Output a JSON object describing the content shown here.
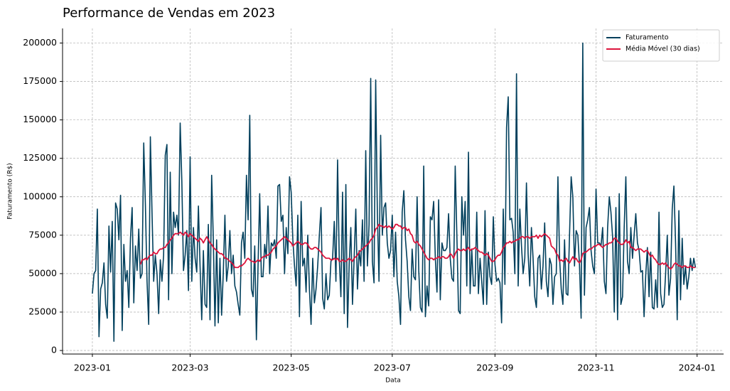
{
  "chart_data": {
    "type": "line",
    "title": "Performance de Vendas em 2023",
    "x_label": "Data",
    "y_label": "Faturamento (R$)",
    "xlim": [
      -18,
      381
    ],
    "xticks": [
      {
        "value": 0,
        "label": "2023-01"
      },
      {
        "value": 59,
        "label": "2023-03"
      },
      {
        "value": 120,
        "label": "2023-05"
      },
      {
        "value": 181,
        "label": "2023-07"
      },
      {
        "value": 243,
        "label": "2023-09"
      },
      {
        "value": 304,
        "label": "2023-11"
      },
      {
        "value": 365,
        "label": "2024-01"
      }
    ],
    "ylim": [
      -2300,
      209500
    ],
    "yticks": [
      0,
      25000,
      50000,
      75000,
      100000,
      125000,
      150000,
      175000,
      200000
    ],
    "grid": true,
    "legend": "upper right",
    "series": [
      {
        "name": "Faturamento",
        "color": "#003f5c",
        "values": [
          37000,
          50000,
          52000,
          92000,
          9000,
          40000,
          44000,
          57000,
          30000,
          21000,
          81000,
          51000,
          84000,
          6000,
          96000,
          92000,
          72000,
          101000,
          13000,
          69000,
          45000,
          52000,
          28000,
          73000,
          93000,
          31000,
          68000,
          52000,
          79000,
          47000,
          50000,
          135000,
          95000,
          45000,
          17000,
          139000,
          90000,
          45000,
          62000,
          50000,
          24000,
          59000,
          45000,
          62000,
          127000,
          134000,
          33000,
          116000,
          50000,
          90000,
          80000,
          88000,
          75000,
          148000,
          110000,
          52000,
          62000,
          78000,
          39000,
          126000,
          45000,
          80000,
          60000,
          51000,
          94000,
          55000,
          20000,
          65000,
          30000,
          28000,
          82000,
          20000,
          114000,
          72000,
          16000,
          72000,
          18000,
          60000,
          23000,
          50000,
          88000,
          45000,
          55000,
          78000,
          50000,
          62000,
          42000,
          38000,
          30000,
          23000,
          70000,
          77000,
          60000,
          114000,
          85000,
          153000,
          40000,
          35000,
          68000,
          7000,
          55000,
          102000,
          48000,
          48000,
          69000,
          60000,
          94000,
          50000,
          70000,
          68000,
          72000,
          60000,
          107000,
          108000,
          84000,
          88000,
          50000,
          80000,
          63000,
          113000,
          103000,
          72000,
          55000,
          42000,
          88000,
          22000,
          97000,
          55000,
          60000,
          38000,
          75000,
          40000,
          17000,
          60000,
          31000,
          40000,
          55000,
          75000,
          93000,
          34000,
          27000,
          50000,
          33000,
          36000,
          58000,
          60000,
          84000,
          45000,
          124000,
          60000,
          35000,
          103000,
          24000,
          108000,
          15000,
          56000,
          80000,
          30000,
          60000,
          92000,
          40000,
          65000,
          55000,
          85000,
          45000,
          130000,
          55000,
          82000,
          177000,
          58000,
          44000,
          176000,
          90000,
          45000,
          140000,
          75000,
          93000,
          96000,
          70000,
          60000,
          65000,
          88000,
          48000,
          77000,
          45000,
          35000,
          17000,
          90000,
          104000,
          72000,
          58000,
          35000,
          26000,
          66000,
          48000,
          46000,
          100000,
          52000,
          28000,
          25000,
          120000,
          22000,
          42000,
          29000,
          87000,
          85000,
          97000,
          60000,
          38000,
          98000,
          33000,
          70000,
          65000,
          65000,
          67000,
          89000,
          60000,
          47000,
          45000,
          120000,
          75000,
          26000,
          24000,
          100000,
          75000,
          97000,
          42000,
          129000,
          37000,
          66000,
          42000,
          42000,
          90000,
          37000,
          60000,
          45000,
          30000,
          91000,
          30000,
          64000,
          48000,
          43000,
          87000,
          56000,
          45000,
          47000,
          44000,
          18000,
          92000,
          43000,
          145000,
          165000,
          85000,
          86000,
          77000,
          50000,
          180000,
          42000,
          92000,
          68000,
          50000,
          60000,
          109000,
          63000,
          42000,
          80000,
          60000,
          35000,
          28000,
          60000,
          62000,
          40000,
          55000,
          83000,
          45000,
          35000,
          60000,
          56000,
          30000,
          48000,
          50000,
          113000,
          60000,
          40000,
          30000,
          72000,
          37000,
          36000,
          75000,
          113000,
          100000,
          55000,
          78000,
          75000,
          56000,
          21000,
          200000,
          36000,
          80000,
          85000,
          93000,
          65000,
          55000,
          50000,
          105000,
          70000,
          70000,
          68000,
          80000,
          45000,
          37000,
          80000,
          100000,
          90000,
          74000,
          25000,
          93000,
          20000,
          102000,
          30000,
          35000,
          80000,
          113000,
          58000,
          50000,
          80000,
          60000,
          75000,
          89000,
          70000,
          65000,
          51000,
          52000,
          22000,
          49000,
          67000,
          35000,
          64000,
          28000,
          27000,
          46000,
          28000,
          90000,
          37000,
          28000,
          30000,
          50000,
          75000,
          36000,
          47000,
          92000,
          107000,
          70000,
          20000,
          91000,
          33000,
          73000,
          43000,
          55000,
          40000,
          48000,
          60000,
          52000,
          60000,
          54000
        ]
      },
      {
        "name": "Média Móvel (30 dias)",
        "color": "#dc143c",
        "values": [
          null,
          null,
          null,
          null,
          null,
          null,
          null,
          null,
          null,
          null,
          null,
          null,
          null,
          null,
          null,
          null,
          null,
          null,
          null,
          null,
          null,
          null,
          null,
          null,
          null,
          null,
          null,
          null,
          null,
          56000,
          59000,
          59000,
          60000,
          59000,
          61000,
          62000,
          62000,
          64000,
          63000,
          63000,
          65000,
          66000,
          66000,
          67000,
          67000,
          69000,
          70000,
          72000,
          73000,
          75000,
          76000,
          76000,
          76000,
          77000,
          76000,
          75000,
          77000,
          76000,
          74000,
          76000,
          75000,
          74000,
          73000,
          72000,
          71000,
          73000,
          72000,
          70000,
          72000,
          74000,
          72000,
          70000,
          69000,
          67000,
          66000,
          65000,
          64000,
          63000,
          63000,
          62000,
          60000,
          60000,
          59000,
          58000,
          57000,
          56000,
          54000,
          54000,
          54000,
          55000,
          55000,
          56000,
          57000,
          59000,
          60000,
          59000,
          58000,
          58000,
          57000,
          58000,
          59000,
          58000,
          60000,
          61000,
          61000,
          62000,
          62000,
          63000,
          64000,
          66000,
          67000,
          68000,
          70000,
          71000,
          72000,
          73000,
          74000,
          73000,
          72000,
          71000,
          70000,
          68000,
          69000,
          70000,
          71000,
          70000,
          69000,
          69000,
          70000,
          70000,
          69000,
          67000,
          66000,
          66000,
          67000,
          67000,
          66000,
          65000,
          64000,
          62000,
          61000,
          60000,
          60000,
          60000,
          59000,
          59000,
          60000,
          59000,
          60000,
          58000,
          58000,
          59000,
          58000,
          58000,
          59000,
          60000,
          59000,
          58000,
          60000,
          61000,
          62000,
          64000,
          65000,
          66000,
          67000,
          68000,
          69000,
          70000,
          72000,
          73000,
          75000,
          79000,
          80000,
          82000,
          81000,
          81000,
          80000,
          81000,
          80000,
          81000,
          80000,
          79000,
          80000,
          82000,
          82000,
          81000,
          81000,
          79000,
          80000,
          80000,
          78000,
          79000,
          76000,
          75000,
          71000,
          70000,
          71000,
          69000,
          68000,
          66000,
          64000,
          62000,
          60000,
          59000,
          60000,
          60000,
          59000,
          60000,
          60000,
          61000,
          60000,
          61000,
          61000,
          60000,
          60000,
          61000,
          63000,
          62000,
          60000,
          63000,
          65000,
          66000,
          65000,
          65000,
          66000,
          65000,
          66000,
          67000,
          65000,
          66000,
          66000,
          67000,
          66000,
          65000,
          64000,
          64000,
          63000,
          62000,
          63000,
          62000,
          60000,
          58000,
          58000,
          59000,
          61000,
          62000,
          62000,
          64000,
          67000,
          68000,
          70000,
          70000,
          71000,
          70000,
          71000,
          71000,
          72000,
          72000,
          73000,
          74000,
          74000,
          73000,
          74000,
          74000,
          73000,
          74000,
          74000,
          74000,
          75000,
          73000,
          75000,
          74000,
          75000,
          76000,
          75000,
          74000,
          73000,
          68000,
          67000,
          66000,
          63000,
          62000,
          58000,
          59000,
          58000,
          59000,
          60000,
          58000,
          57000,
          59000,
          61000,
          59000,
          60000,
          58000,
          57000,
          59000,
          63000,
          64000,
          64000,
          65000,
          66000,
          66000,
          67000,
          68000,
          68000,
          69000,
          69000,
          68000,
          67000,
          68000,
          69000,
          69000,
          70000,
          70000,
          71000,
          73000,
          73000,
          71000,
          70000,
          69000,
          69000,
          70000,
          72000,
          70000,
          71000,
          67000,
          67000,
          66000,
          65000,
          66000,
          66000,
          66000,
          65000,
          64000,
          65000,
          65000,
          63000,
          61000,
          62000,
          60000,
          59000,
          57000,
          56000,
          56000,
          57000,
          56000,
          57000,
          55000,
          54000,
          53000,
          54000,
          56000,
          57000,
          56000,
          55000,
          55000,
          54000,
          55000,
          55000,
          54000,
          54000,
          55000,
          54000,
          54000,
          54000
        ]
      }
    ]
  }
}
